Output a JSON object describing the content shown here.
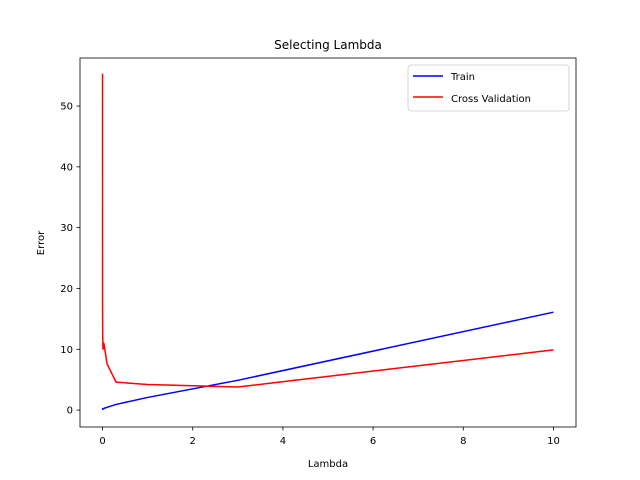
{
  "chart_data": {
    "type": "line",
    "title": "Selecting Lambda",
    "xlabel": "Lambda",
    "ylabel": "Error",
    "xlim": [
      -0.5,
      10.5
    ],
    "ylim": [
      -2.78,
      57.9
    ],
    "xticks": [
      0,
      2,
      4,
      6,
      8,
      10
    ],
    "yticks": [
      0,
      10,
      20,
      30,
      40,
      50
    ],
    "grid": false,
    "legend_position": "top-right",
    "x": [
      0,
      0.001,
      0.003,
      0.01,
      0.03,
      0.1,
      0.3,
      1,
      3,
      10
    ],
    "series": [
      {
        "name": "Train",
        "color": "#0000ff",
        "values": [
          0.0,
          0.1,
          0.2,
          0.22,
          0.28,
          0.46,
          0.93,
          2.08,
          4.9,
          16.1
        ]
      },
      {
        "name": "Cross Validation",
        "color": "#ff0000",
        "values": [
          55.3,
          17.0,
          12.5,
          10.0,
          11.0,
          7.6,
          4.6,
          4.2,
          3.8,
          9.9
        ]
      }
    ]
  }
}
